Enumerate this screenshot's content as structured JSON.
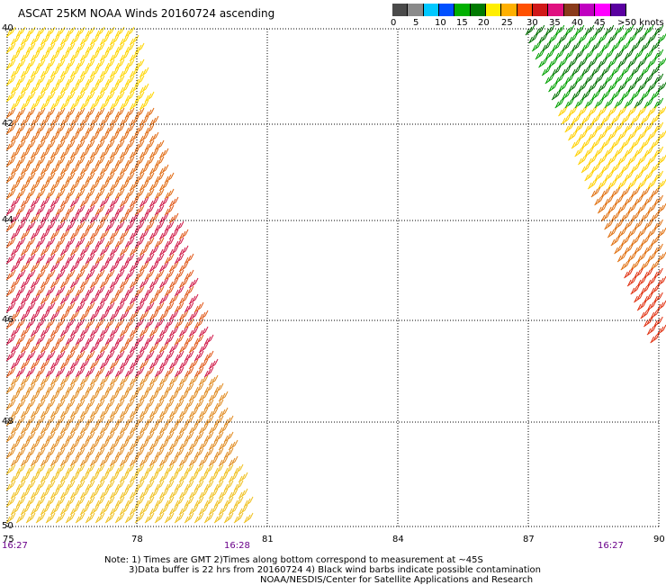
{
  "title": "ASCAT 25KM NOAA Winds 20160724 ascending",
  "legend": {
    "labels": [
      "0",
      "5",
      "10",
      "15",
      "20",
      "25",
      "30",
      "35",
      "40",
      "45",
      ">50 knots"
    ],
    "colors": [
      "#4a4a4a",
      "#8a8a8a",
      "#00c8ff",
      "#0050ff",
      "#00b000",
      "#007a00",
      "#ffee00",
      "#ffb000",
      "#ff5000",
      "#d01818",
      "#e01080",
      "#8a3a1a",
      "#c000c0",
      "#ff00ff",
      "#5a00a0"
    ]
  },
  "map": {
    "lat_labels": [
      "40",
      "42",
      "44",
      "46",
      "48",
      "50"
    ],
    "lon_labels": [
      "75",
      "78",
      "81",
      "84",
      "87",
      "90"
    ],
    "time_labels": [
      "16:27",
      "16:28",
      "16:27"
    ]
  },
  "notes": {
    "line1": "Note: 1) Times are GMT 2)Times along bottom correspond to measurement at ~45S",
    "line2": "3)Data buffer is 22 hrs from 20160724 4) Black wind barbs indicate possible contamination",
    "line3": "NOAA/NESDIS/Center for Satellite Applications and Research"
  }
}
